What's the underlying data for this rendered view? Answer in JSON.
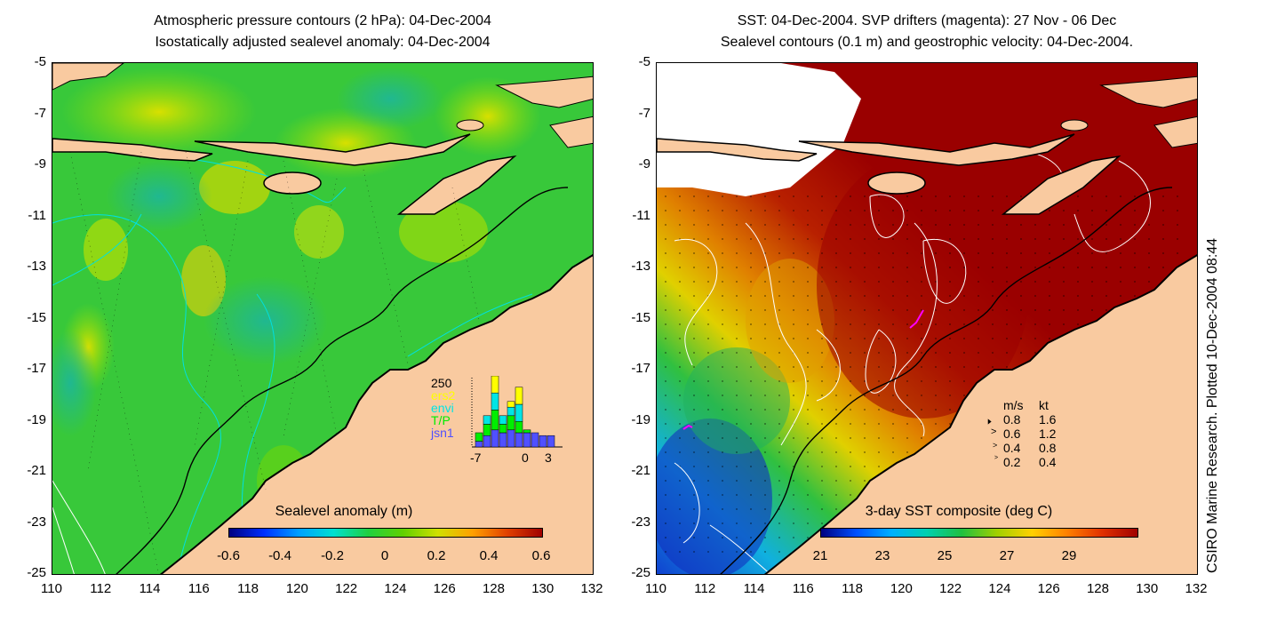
{
  "left_panel": {
    "title_line1": "Atmospheric pressure contours (2 hPa): 04-Dec-2004",
    "title_line2": "Isostatically adjusted sealevel anomaly: 04-Dec-2004",
    "colorbar_label": "Sealevel anomaly (m)",
    "colorbar_ticks": [
      "-0.6",
      "-0.4",
      "-0.2",
      "0",
      "0.2",
      "0.4",
      "0.6"
    ],
    "inset": {
      "ymax_label": "250",
      "missions": [
        "ers2",
        "envi",
        "T/P",
        "jsn1"
      ],
      "mission_colors": [
        "#ffff00",
        "#00e5e5",
        "#00ee00",
        "#5050ff"
      ],
      "x_ticks": [
        "-7",
        "0",
        "3"
      ],
      "bars": [
        {
          "x": -7,
          "jsn1": 20,
          "tp": 30,
          "envi": 0,
          "ers2": 0
        },
        {
          "x": -6,
          "jsn1": 40,
          "tp": 40,
          "envi": 30,
          "ers2": 0
        },
        {
          "x": -5,
          "jsn1": 60,
          "tp": 70,
          "envi": 60,
          "ers2": 60
        },
        {
          "x": -4,
          "jsn1": 50,
          "tp": 30,
          "envi": 30,
          "ers2": 0
        },
        {
          "x": -3,
          "jsn1": 60,
          "tp": 50,
          "envi": 30,
          "ers2": 20
        },
        {
          "x": -2,
          "jsn1": 50,
          "tp": 40,
          "envi": 60,
          "ers2": 60
        },
        {
          "x": -1,
          "jsn1": 50,
          "tp": 10,
          "envi": 0,
          "ers2": 0
        },
        {
          "x": 0,
          "jsn1": 50,
          "tp": 0,
          "envi": 0,
          "ers2": 0
        },
        {
          "x": 1,
          "jsn1": 40,
          "tp": 0,
          "envi": 0,
          "ers2": 0
        },
        {
          "x": 2,
          "jsn1": 40,
          "tp": 0,
          "envi": 0,
          "ers2": 0
        }
      ]
    }
  },
  "right_panel": {
    "title_line1": "SST: 04-Dec-2004. SVP drifters (magenta): 27 Nov - 06 Dec",
    "title_line2": "Sealevel contours (0.1 m) and geostrophic velocity: 04-Dec-2004.",
    "colorbar_label": "3-day SST composite (deg C)",
    "colorbar_ticks": [
      "21",
      "23",
      "25",
      "27",
      "29"
    ],
    "velocity_legend": {
      "header_ms": "m/s",
      "header_kt": "kt",
      "rows": [
        {
          "ms": "0.8",
          "kt": "1.6"
        },
        {
          "ms": "0.6",
          "kt": "1.2"
        },
        {
          "ms": "0.4",
          "kt": "0.8"
        },
        {
          "ms": "0.2",
          "kt": "0.4"
        }
      ]
    }
  },
  "axes": {
    "y_ticks": [
      "-5",
      "-7",
      "-9",
      "-11",
      "-13",
      "-15",
      "-17",
      "-19",
      "-21",
      "-23",
      "-25"
    ],
    "x_ticks": [
      "110",
      "112",
      "114",
      "116",
      "118",
      "120",
      "122",
      "124",
      "126",
      "128",
      "130",
      "132"
    ],
    "lat_range": [
      -25,
      -5
    ],
    "lon_range": [
      110,
      132
    ]
  },
  "credit": "CSIRO Marine Research. Plotted 10-Dec-2004 08:44",
  "colors": {
    "land": "#f9caa0",
    "coast": "#000000",
    "sla_base": "#33cc33",
    "sst_base": "#9a0000"
  }
}
